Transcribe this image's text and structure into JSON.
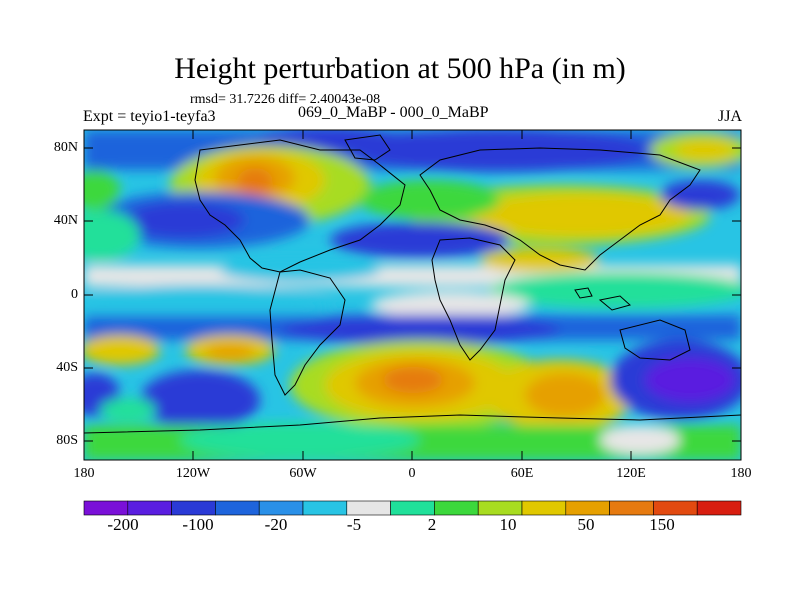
{
  "title": "Height perturbation at 500 hPa (in m)",
  "stats": "rmsd= 31.7226 diff= 2.40043e-08",
  "experiment": "Expt = teyio1-teyfa3",
  "difference": "069_0_MaBP - 000_0_MaBP",
  "season": "JJA",
  "lat_ticks": [
    "80N",
    "40N",
    "0",
    "40S",
    "80S"
  ],
  "lon_ticks": [
    "180",
    "120W",
    "60W",
    "0",
    "60E",
    "120E",
    "180"
  ],
  "colorbar": {
    "labels": [
      "-200",
      "-100",
      "-20",
      "-5",
      "2",
      "10",
      "50",
      "150"
    ],
    "colors": [
      "#7a10d8",
      "#5a1ee0",
      "#2a3ad6",
      "#1e64dc",
      "#2a90e8",
      "#28c4e4",
      "#e6e6e6",
      "#20e09a",
      "#3cd83c",
      "#a8dc20",
      "#e0c800",
      "#e6a000",
      "#e67a10",
      "#e24a10",
      "#d81e10"
    ]
  }
}
